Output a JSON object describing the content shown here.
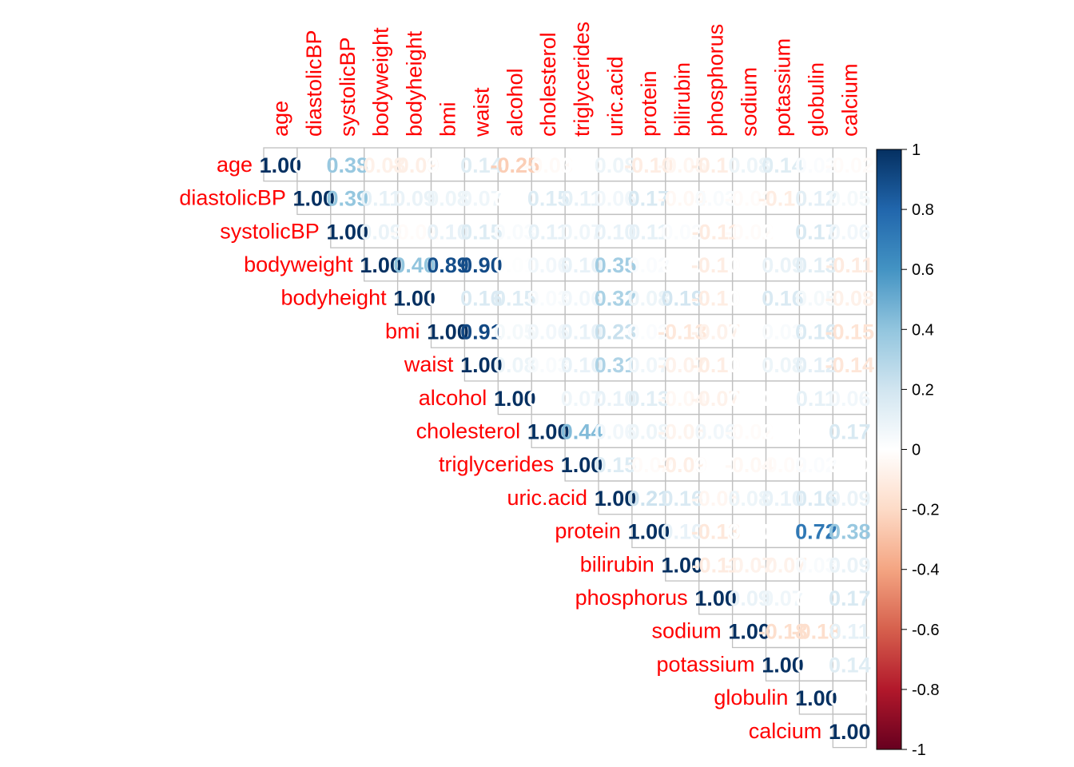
{
  "chart_data": {
    "type": "heatmap",
    "subtype": "correlation-upper",
    "variables": [
      "age",
      "diastolicBP",
      "systolicBP",
      "bodyweight",
      "bodyheight",
      "bmi",
      "waist",
      "alcohol",
      "cholesterol",
      "triglycerides",
      "uric.acid",
      "protein",
      "bilirubin",
      "phosphorus",
      "sodium",
      "potassium",
      "globulin",
      "calcium"
    ],
    "matrix": [
      [
        1.0,
        0.0,
        0.38,
        -0.08,
        -0.09,
        0.0,
        0.14,
        -0.25,
        -0.03,
        0.0,
        0.08,
        -0.1,
        -0.05,
        -0.1,
        0.08,
        0.14,
        0.02,
        -0.02
      ],
      [
        null,
        1.0,
        0.39,
        0.11,
        0.09,
        0.08,
        0.07,
        0.0,
        0.15,
        0.11,
        0.06,
        0.17,
        -0.04,
        0.03,
        -0.02,
        -0.1,
        0.12,
        0.05
      ],
      [
        null,
        null,
        1.0,
        0.09,
        -0.02,
        0.1,
        0.15,
        0.03,
        0.11,
        0.07,
        0.1,
        0.11,
        0.02,
        -0.11,
        -0.02,
        0.0,
        0.17,
        0.06
      ],
      [
        null,
        null,
        null,
        1.0,
        0.4,
        0.89,
        0.9,
        0.01,
        0.06,
        0.1,
        0.35,
        0.02,
        0.0,
        -0.1,
        0.0,
        0.09,
        0.13,
        -0.11
      ],
      [
        null,
        null,
        null,
        null,
        1.0,
        0.0,
        0.16,
        0.15,
        0.03,
        0.06,
        0.32,
        0.08,
        0.19,
        -0.1,
        0.0,
        0.16,
        0.05,
        -0.08
      ],
      [
        null,
        null,
        null,
        null,
        null,
        1.0,
        0.91,
        0.05,
        0.06,
        0.1,
        0.23,
        0.02,
        -0.13,
        -0.07,
        0.0,
        0.03,
        0.16,
        -0.15
      ],
      [
        null,
        null,
        null,
        null,
        null,
        null,
        1.0,
        0.08,
        0.03,
        0.1,
        0.31,
        0.07,
        -0.07,
        -0.1,
        0.0,
        0.08,
        0.12,
        -0.14
      ],
      [
        null,
        null,
        null,
        null,
        null,
        null,
        null,
        1.0,
        0.0,
        0.07,
        0.1,
        0.13,
        -0.04,
        -0.07,
        0.0,
        0.0,
        0.11,
        0.06
      ],
      [
        null,
        null,
        null,
        null,
        null,
        null,
        null,
        null,
        1.0,
        0.44,
        0.06,
        0.08,
        -0.06,
        0.06,
        -0.02,
        0.0,
        0.0,
        0.17
      ],
      [
        null,
        null,
        null,
        null,
        null,
        null,
        null,
        null,
        null,
        1.0,
        0.15,
        -0.02,
        -0.09,
        0.0,
        -0.04,
        -0.02,
        0.02,
        0.0
      ],
      [
        null,
        null,
        null,
        null,
        null,
        null,
        null,
        null,
        null,
        null,
        1.0,
        0.21,
        0.16,
        -0.05,
        0.08,
        0.1,
        0.16,
        0.09
      ],
      [
        null,
        null,
        null,
        null,
        null,
        null,
        null,
        null,
        null,
        null,
        null,
        1.0,
        0.1,
        -0.13,
        0.0,
        0.0,
        0.72,
        0.38
      ],
      [
        null,
        null,
        null,
        null,
        null,
        null,
        null,
        null,
        null,
        null,
        null,
        null,
        1.0,
        -0.11,
        -0.07,
        -0.07,
        0.03,
        0.09
      ],
      [
        null,
        null,
        null,
        null,
        null,
        null,
        null,
        null,
        null,
        null,
        null,
        null,
        null,
        1.0,
        0.09,
        0.07,
        0.0,
        0.17
      ],
      [
        null,
        null,
        null,
        null,
        null,
        null,
        null,
        null,
        null,
        null,
        null,
        null,
        null,
        null,
        1.0,
        -0.18,
        -0.18,
        0.11
      ],
      [
        null,
        null,
        null,
        null,
        null,
        null,
        null,
        null,
        null,
        null,
        null,
        null,
        null,
        null,
        null,
        1.0,
        0.0,
        0.14
      ],
      [
        null,
        null,
        null,
        null,
        null,
        null,
        null,
        null,
        null,
        null,
        null,
        null,
        null,
        null,
        null,
        null,
        1.0,
        0.0
      ],
      [
        null,
        null,
        null,
        null,
        null,
        null,
        null,
        null,
        null,
        null,
        null,
        null,
        null,
        null,
        null,
        null,
        null,
        1.0
      ]
    ],
    "value_format": "fixed-2",
    "label_color": "#ff0000",
    "grid_color": "#c0c0c0",
    "colorbar": {
      "range": [
        -1,
        1
      ],
      "ticks": [
        "1",
        "0.8",
        "0.6",
        "0.4",
        "0.2",
        "0",
        "-0.2",
        "-0.4",
        "-0.6",
        "-0.8",
        "-1"
      ],
      "stops": [
        "#67001f",
        "#b2182b",
        "#d6604d",
        "#f4a582",
        "#fddbc7",
        "#ffffff",
        "#d1e5f0",
        "#92c5de",
        "#4393c3",
        "#2166ac",
        "#053061"
      ],
      "placement": "right"
    },
    "legend": false
  }
}
